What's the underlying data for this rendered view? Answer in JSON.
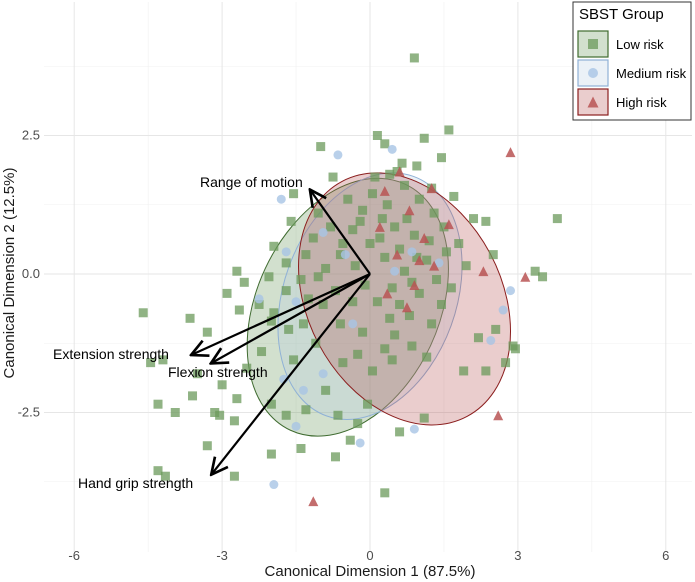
{
  "chart_data": {
    "type": "scatter",
    "xlabel": "Canonical Dimension 1 (87.5%)",
    "ylabel": "Canonical Dimension 2 (12.5%)",
    "xlim": [
      -6.3,
      6.3
    ],
    "ylim": [
      -5.0,
      4.0
    ],
    "x_ticks": [
      -6,
      -3,
      0,
      3,
      6
    ],
    "x_tick_labels": [
      "-6",
      "-3",
      "0",
      "3",
      "6"
    ],
    "y_ticks": [
      -2.5,
      0,
      2.5
    ],
    "y_tick_labels": [
      "-2.5",
      "0.0",
      "2.5"
    ],
    "grid": true,
    "legend": {
      "title": "SBST Group",
      "position": "top-right",
      "entries": [
        {
          "label": "Low risk",
          "shape": "square",
          "color": "#6b9a5b"
        },
        {
          "label": "Medium risk",
          "shape": "circle",
          "color": "#a7c4e5"
        },
        {
          "label": "High risk",
          "shape": "triangle",
          "color": "#b95454"
        }
      ]
    },
    "ellipses": [
      {
        "group": "Low risk",
        "cx": -0.45,
        "cy": -0.6,
        "rx": 1.85,
        "ry": 2.45,
        "angle": 25,
        "fill": "#5f8f4e",
        "stroke": "#3f6b30"
      },
      {
        "group": "Medium risk",
        "cx": 0.0,
        "cy": -0.4,
        "rx": 1.75,
        "ry": 2.3,
        "angle": 20,
        "fill": "#b8cde3",
        "stroke": "#8fb1d6"
      },
      {
        "group": "High risk",
        "cx": 0.7,
        "cy": -0.45,
        "rx": 2.7,
        "ry": 1.75,
        "angle": 62,
        "fill": "#b34a4a",
        "stroke": "#8b1e1e"
      }
    ],
    "vectors": [
      {
        "label": "Range of motion",
        "x": -1.2,
        "y": 1.5
      },
      {
        "label": "Extension strength",
        "x": -3.6,
        "y": -1.45
      },
      {
        "label": "Flexion strength",
        "x": -3.2,
        "y": -1.6
      },
      {
        "label": "Hand grip strength",
        "x": -3.2,
        "y": -3.6
      }
    ],
    "series": [
      {
        "name": "Low risk",
        "shape": "square",
        "color": "#6b9a5b",
        "points": [
          [
            0.9,
            3.9
          ],
          [
            -1.0,
            2.3
          ],
          [
            0.3,
            2.35
          ],
          [
            0.15,
            2.5
          ],
          [
            0.4,
            1.8
          ],
          [
            0.55,
            1.85
          ],
          [
            1.6,
            2.6
          ],
          [
            1.45,
            2.1
          ],
          [
            1.1,
            2.45
          ],
          [
            -0.75,
            1.75
          ],
          [
            -1.55,
            1.45
          ],
          [
            -1.95,
            0.5
          ],
          [
            -1.6,
            0.95
          ],
          [
            -2.7,
            0.05
          ],
          [
            -2.55,
            -0.15
          ],
          [
            -2.9,
            -0.35
          ],
          [
            -2.65,
            -0.65
          ],
          [
            -2.25,
            -0.55
          ],
          [
            -2.0,
            -0.85
          ],
          [
            -4.6,
            -0.7
          ],
          [
            -3.65,
            -0.8
          ],
          [
            -3.3,
            -1.05
          ],
          [
            -4.2,
            -1.55
          ],
          [
            -4.45,
            -1.6
          ],
          [
            -3.5,
            -1.8
          ],
          [
            -2.2,
            -1.4
          ],
          [
            -1.55,
            -1.55
          ],
          [
            -2.5,
            -1.7
          ],
          [
            -3.0,
            -2.0
          ],
          [
            -3.6,
            -2.2
          ],
          [
            -2.7,
            -2.25
          ],
          [
            -2.0,
            -2.35
          ],
          [
            -1.7,
            -2.55
          ],
          [
            -1.3,
            -2.45
          ],
          [
            -4.3,
            -2.35
          ],
          [
            -3.95,
            -2.5
          ],
          [
            -3.15,
            -2.5
          ],
          [
            -2.75,
            -2.65
          ],
          [
            -3.05,
            -2.55
          ],
          [
            -4.3,
            -3.55
          ],
          [
            -4.15,
            -3.65
          ],
          [
            -3.3,
            -3.1
          ],
          [
            -2.75,
            -3.65
          ],
          [
            -2.0,
            -3.25
          ],
          [
            -1.4,
            -3.15
          ],
          [
            -0.7,
            -3.3
          ],
          [
            -0.4,
            -3.0
          ],
          [
            -0.25,
            -2.7
          ],
          [
            -0.05,
            -2.35
          ],
          [
            -0.9,
            -2.1
          ],
          [
            -0.65,
            -2.55
          ],
          [
            0.3,
            -3.95
          ],
          [
            0.6,
            -2.85
          ],
          [
            1.1,
            -2.6
          ],
          [
            1.9,
            -1.75
          ],
          [
            2.2,
            -1.15
          ],
          [
            2.55,
            -1.0
          ],
          [
            2.9,
            -1.3
          ],
          [
            2.35,
            -1.75
          ],
          [
            2.75,
            -1.6
          ],
          [
            2.95,
            -1.35
          ],
          [
            3.5,
            -0.05
          ],
          [
            3.35,
            0.05
          ],
          [
            3.8,
            1.0
          ],
          [
            2.1,
            1.0
          ],
          [
            2.35,
            0.95
          ],
          [
            2.5,
            0.35
          ],
          [
            1.95,
            0.15
          ],
          [
            1.65,
            -0.25
          ],
          [
            1.45,
            -0.55
          ],
          [
            1.25,
            -0.9
          ],
          [
            0.8,
            -0.75
          ],
          [
            0.5,
            -1.1
          ],
          [
            0.3,
            -1.35
          ],
          [
            -0.15,
            -1.05
          ],
          [
            -0.6,
            -0.9
          ],
          [
            -0.95,
            -0.55
          ],
          [
            -1.25,
            -0.45
          ],
          [
            -1.4,
            -0.1
          ],
          [
            -1.7,
            0.2
          ],
          [
            -2.05,
            -0.05
          ],
          [
            -1.95,
            -0.7
          ],
          [
            -1.7,
            -0.3
          ],
          [
            -0.9,
            0.1
          ],
          [
            -0.6,
            0.35
          ],
          [
            -0.35,
            0.8
          ],
          [
            -0.15,
            1.15
          ],
          [
            0.05,
            1.45
          ],
          [
            0.35,
            1.25
          ],
          [
            0.7,
            1.6
          ],
          [
            1.0,
            1.35
          ],
          [
            1.3,
            1.1
          ],
          [
            1.5,
            0.85
          ],
          [
            1.2,
            0.6
          ],
          [
            0.95,
            0.3
          ],
          [
            0.7,
            0.05
          ],
          [
            0.45,
            -0.25
          ],
          [
            0.15,
            -0.5
          ],
          [
            -0.1,
            -0.2
          ],
          [
            -0.3,
            0.15
          ],
          [
            -0.55,
            0.55
          ],
          [
            -0.8,
            0.85
          ],
          [
            -1.05,
            1.1
          ],
          [
            0.2,
            0.65
          ],
          [
            0.5,
            0.85
          ],
          [
            0.75,
            1.0
          ],
          [
            0.9,
            0.7
          ],
          [
            1.15,
            0.25
          ],
          [
            1.35,
            -0.1
          ],
          [
            1.0,
            -0.35
          ],
          [
            0.6,
            -0.55
          ],
          [
            0.3,
            0.3
          ],
          [
            0.0,
            0.55
          ],
          [
            -0.2,
            0.95
          ],
          [
            0.25,
            1.0
          ],
          [
            0.6,
            0.45
          ],
          [
            0.85,
            -0.15
          ],
          [
            0.4,
            -0.8
          ],
          [
            -0.35,
            -0.5
          ],
          [
            -0.7,
            -0.3
          ],
          [
            -1.05,
            -0.05
          ],
          [
            -1.3,
            0.35
          ],
          [
            -1.15,
            0.65
          ],
          [
            -0.45,
            1.35
          ],
          [
            0.1,
            1.75
          ],
          [
            0.65,
            2.0
          ],
          [
            0.95,
            1.95
          ],
          [
            1.25,
            1.55
          ],
          [
            1.7,
            1.4
          ],
          [
            1.8,
            0.55
          ],
          [
            1.55,
            0.4
          ],
          [
            -0.25,
            -1.45
          ],
          [
            -0.55,
            -1.6
          ],
          [
            -1.1,
            -1.25
          ],
          [
            -1.35,
            -0.9
          ],
          [
            -1.65,
            -1.0
          ],
          [
            0.05,
            -1.75
          ],
          [
            0.45,
            -1.55
          ],
          [
            0.85,
            -1.3
          ],
          [
            1.15,
            -1.5
          ]
        ]
      },
      {
        "name": "Medium risk",
        "shape": "circle",
        "color": "#a7c4e5",
        "points": [
          [
            -0.65,
            2.15
          ],
          [
            0.45,
            2.25
          ],
          [
            -1.8,
            1.35
          ],
          [
            -1.7,
            0.4
          ],
          [
            -1.5,
            -0.5
          ],
          [
            -2.25,
            -0.45
          ],
          [
            -1.75,
            -1.9
          ],
          [
            -1.35,
            -2.1
          ],
          [
            -0.95,
            -1.8
          ],
          [
            -1.5,
            -2.75
          ],
          [
            -1.95,
            -3.8
          ],
          [
            -0.2,
            -3.05
          ],
          [
            0.9,
            -2.8
          ],
          [
            2.45,
            -1.2
          ],
          [
            2.7,
            -0.65
          ],
          [
            2.85,
            -0.3
          ],
          [
            1.4,
            0.2
          ],
          [
            0.5,
            0.05
          ],
          [
            -0.5,
            0.35
          ],
          [
            -0.95,
            0.75
          ],
          [
            0.85,
            0.4
          ],
          [
            -0.35,
            -0.9
          ]
        ]
      },
      {
        "name": "High risk",
        "shape": "triangle",
        "color": "#b95454",
        "points": [
          [
            2.85,
            2.2
          ],
          [
            2.3,
            0.05
          ],
          [
            3.15,
            -0.05
          ],
          [
            2.6,
            -2.55
          ],
          [
            -1.15,
            -4.1
          ],
          [
            0.3,
            1.5
          ],
          [
            0.8,
            1.15
          ],
          [
            1.1,
            0.65
          ],
          [
            1.3,
            0.15
          ],
          [
            0.9,
            -0.2
          ],
          [
            0.55,
            0.35
          ],
          [
            0.2,
            0.85
          ],
          [
            0.6,
            1.85
          ],
          [
            1.0,
            0.25
          ],
          [
            0.35,
            -0.35
          ],
          [
            0.75,
            -0.6
          ],
          [
            1.6,
            0.9
          ],
          [
            1.25,
            1.55
          ]
        ]
      }
    ]
  }
}
